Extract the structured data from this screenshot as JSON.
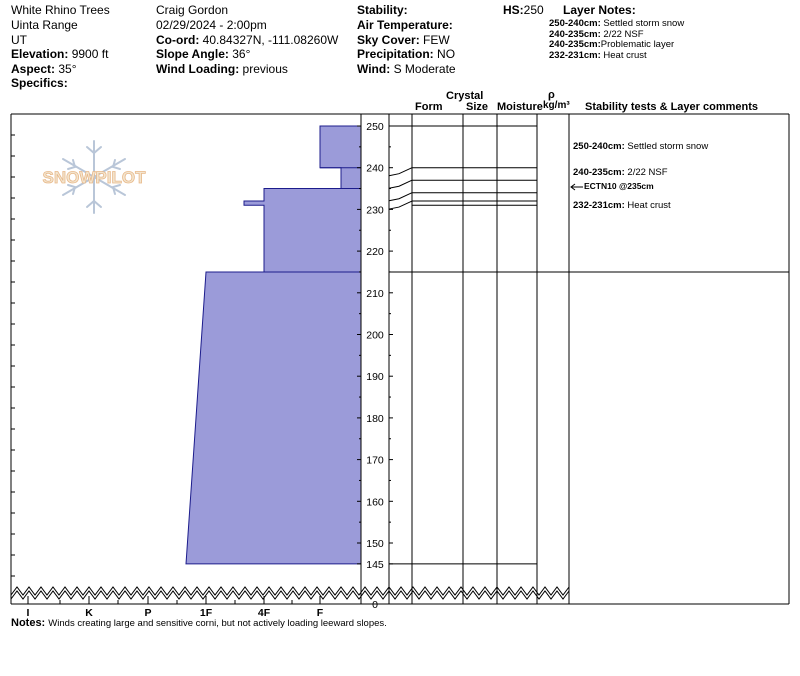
{
  "header": {
    "location": "White Rhino Trees",
    "range": "Uinta Range",
    "state": "UT",
    "elevation_label": "Elevation:",
    "elevation_value": "9900 ft",
    "aspect_label": "Aspect:",
    "aspect_value": "35°",
    "specifics_label": "Specifics:",
    "observer": "Craig Gordon",
    "datetime": "02/29/2024 - 2:00pm",
    "coord_label": "Co-ord:",
    "coord_value": "40.84327N, -111.08260W",
    "slope_label": "Slope Angle:",
    "slope_value": "36°",
    "wind_loading_label": "Wind Loading:",
    "wind_loading_value": "previous",
    "stability_label": "Stability:",
    "air_temp_label": "Air Temperature:",
    "sky_label": "Sky Cover:",
    "sky_value": "FEW",
    "precip_label": "Precipitation:",
    "precip_value": "NO",
    "wind_label": "Wind:",
    "wind_value": "S Moderate",
    "hs_label": "HS:",
    "hs_value": "250",
    "layer_notes_label": "Layer Notes:",
    "layer_notes": [
      {
        "range": "250-240cm:",
        "text": "Settled storm snow"
      },
      {
        "range": "240-235cm:",
        "text": "2/22 NSF"
      },
      {
        "range": "240-235cm:",
        "text": "Problematic layer"
      },
      {
        "range": "232-231cm:",
        "text": "Heat crust"
      }
    ]
  },
  "columns": {
    "crystal": "Crystal",
    "form": "Form",
    "size": "Size",
    "moisture": "Moisture",
    "rho": "ρ",
    "density_unit": "kg/m³",
    "comments": "Stability tests & Layer comments"
  },
  "logo_text": "SNOWPILOT",
  "chart_data": {
    "type": "area",
    "x_axis_labels": [
      "I",
      "K",
      "P",
      "1F",
      "4F",
      "F"
    ],
    "y_tick_labels": [
      "250",
      "240",
      "230",
      "220",
      "210",
      "200",
      "190",
      "180",
      "170",
      "160",
      "150",
      "145",
      "0"
    ],
    "y_ticks": [
      250,
      240,
      230,
      220,
      210,
      200,
      190,
      180,
      170,
      160,
      150,
      145,
      0
    ],
    "snow_depth_cm": 250,
    "hardness_profile": [
      {
        "top": 250,
        "bottom": 240,
        "hardness": "F"
      },
      {
        "top": 240,
        "bottom": 235,
        "hardness": "F+"
      },
      {
        "top": 235,
        "bottom": 232,
        "hardness": "4F+"
      },
      {
        "top": 232,
        "bottom": 231,
        "hardness": "1F"
      },
      {
        "top": 231,
        "bottom": 215,
        "hardness": "4F+"
      },
      {
        "top": 215,
        "bottom": 145,
        "hardness": "1F to 1F-"
      }
    ],
    "layer_boundaries": [
      240,
      237,
      234,
      232,
      231,
      215,
      145
    ],
    "comments": [
      {
        "label": "250-240cm:",
        "text": "Settled storm snow"
      },
      {
        "label": "240-235cm:",
        "text": "2/22 NSF"
      },
      {
        "label": "",
        "text": "ECTN10 @235cm"
      },
      {
        "label": "232-231cm:",
        "text": "Heat crust"
      }
    ],
    "notes_label": "Notes:",
    "notes_text": "Winds creating large and sensitive corni, but not actively loading leeward slopes."
  }
}
